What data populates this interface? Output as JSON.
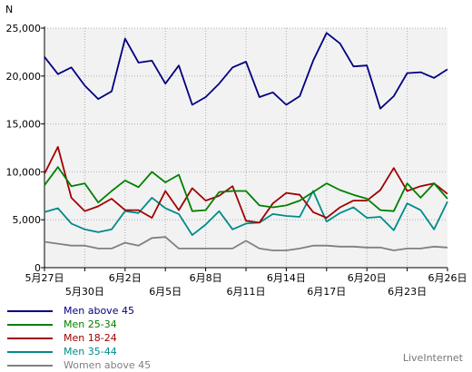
{
  "chart_data": {
    "type": "line",
    "ylabel": "N",
    "ylim": [
      0,
      25000
    ],
    "yticks": [
      0,
      5000,
      10000,
      15000,
      20000,
      25000
    ],
    "ytick_labels": [
      "0",
      "5,000",
      "10,000",
      "15,000",
      "20,000",
      "25,000"
    ],
    "x": [
      "5月27日",
      "5月28日",
      "5月29日",
      "5月30日",
      "5月31日",
      "6月1日",
      "6月2日",
      "6月3日",
      "6月4日",
      "6月5日",
      "6月6日",
      "6月7日",
      "6月8日",
      "6月9日",
      "6月10日",
      "6月11日",
      "6月12日",
      "6月13日",
      "6月14日",
      "6月15日",
      "6月16日",
      "6月17日",
      "6月18日",
      "6月19日",
      "6月20日",
      "6月21日",
      "6月22日",
      "6月23日",
      "6月24日",
      "6月25日",
      "6月26日"
    ],
    "xtick_labels": [
      {
        "label": "5月27日",
        "row": 0
      },
      {
        "label": "5月30日",
        "row": 1
      },
      {
        "label": "6月2日",
        "row": 0
      },
      {
        "label": "6月5日",
        "row": 1
      },
      {
        "label": "6月8日",
        "row": 0
      },
      {
        "label": "6月11日",
        "row": 1
      },
      {
        "label": "6月14日",
        "row": 0
      },
      {
        "label": "6月17日",
        "row": 1
      },
      {
        "label": "6月20日",
        "row": 0
      },
      {
        "label": "6月23日",
        "row": 1
      },
      {
        "label": "6月26日",
        "row": 0
      }
    ],
    "grid": true,
    "legend_position": "bottom-left",
    "series": [
      {
        "name": "Men above 45",
        "color": "#000080",
        "values": [
          22000,
          20200,
          20900,
          19000,
          17600,
          18400,
          23900,
          21400,
          21600,
          19200,
          21100,
          17000,
          17800,
          19200,
          20900,
          21500,
          17800,
          18300,
          17000,
          17900,
          21600,
          24500,
          23400,
          21000,
          21100,
          16600,
          17900,
          20300,
          20400,
          19800,
          20700
        ]
      },
      {
        "name": "Men 25-34",
        "color": "#008000",
        "values": [
          8600,
          10500,
          8500,
          8800,
          6800,
          8000,
          9100,
          8400,
          10000,
          8900,
          9700,
          5900,
          6000,
          7900,
          8000,
          8000,
          6500,
          6300,
          6500,
          7000,
          7900,
          8800,
          8100,
          7600,
          7200,
          6000,
          5900,
          8800,
          7300,
          8800,
          7200
        ]
      },
      {
        "name": "Men 18-24",
        "color": "#a00000",
        "values": [
          9800,
          12600,
          7300,
          5900,
          6400,
          7200,
          6000,
          6000,
          5200,
          8000,
          6000,
          8300,
          7000,
          7500,
          8500,
          4900,
          4700,
          6700,
          7800,
          7600,
          5800,
          5200,
          6300,
          7000,
          7000,
          8100,
          10400,
          8000,
          8500,
          8800,
          7700
        ]
      },
      {
        "name": "Men 35-44",
        "color": "#008b8b",
        "values": [
          5800,
          6200,
          4600,
          4000,
          3700,
          4000,
          5900,
          5700,
          7300,
          6200,
          5600,
          3400,
          4500,
          5900,
          4000,
          4600,
          4700,
          5600,
          5400,
          5300,
          8000,
          4800,
          5700,
          6300,
          5200,
          5300,
          3900,
          6700,
          6000,
          4000,
          6900
        ]
      },
      {
        "name": "Women above 45",
        "color": "#808080",
        "values": [
          2700,
          2500,
          2300,
          2300,
          2000,
          2000,
          2600,
          2300,
          3100,
          3200,
          2000,
          2000,
          2000,
          2000,
          2000,
          2800,
          2000,
          1800,
          1800,
          2000,
          2300,
          2300,
          2200,
          2200,
          2100,
          2100,
          1800,
          2000,
          2000,
          2200,
          2100
        ]
      }
    ]
  },
  "brand": "LiveInternet"
}
